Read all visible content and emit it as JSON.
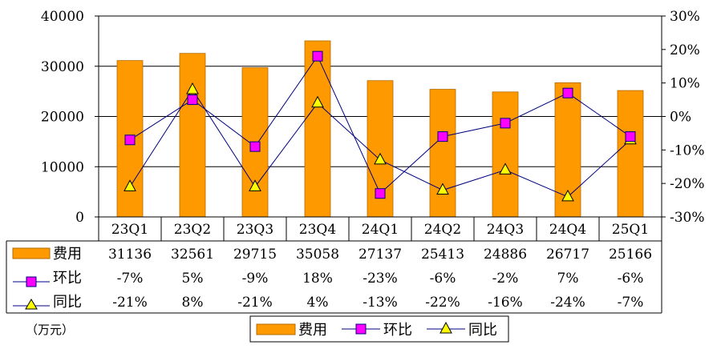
{
  "chart_data": {
    "type": "bar",
    "categories": [
      "23Q1",
      "23Q2",
      "23Q3",
      "23Q4",
      "24Q1",
      "24Q2",
      "24Q3",
      "24Q4",
      "25Q1"
    ],
    "series": [
      {
        "name": "费用",
        "type": "bar",
        "axis": "left",
        "values": [
          31136,
          32561,
          29715,
          35058,
          27137,
          25413,
          24886,
          26717,
          25166
        ],
        "labels": [
          "31136",
          "32561",
          "29715",
          "35058",
          "27137",
          "25413",
          "24886",
          "26717",
          "25166"
        ]
      },
      {
        "name": "环比",
        "type": "line",
        "marker": "square",
        "axis": "right",
        "values": [
          -7,
          5,
          -9,
          18,
          -23,
          -6,
          -2,
          7,
          -6
        ],
        "labels": [
          "-7%",
          "5%",
          "-9%",
          "18%",
          "-23%",
          "-6%",
          "-2%",
          "7%",
          "-6%"
        ]
      },
      {
        "name": "同比",
        "type": "line",
        "marker": "triangle",
        "axis": "right",
        "values": [
          -21,
          8,
          -21,
          4,
          -13,
          -22,
          -16,
          -24,
          -7
        ],
        "labels": [
          "-21%",
          "8%",
          "-21%",
          "4%",
          "-13%",
          "-22%",
          "-16%",
          "-24%",
          "-7%"
        ]
      }
    ],
    "y_left": {
      "range": [
        0,
        40000
      ],
      "ticks": [
        "0",
        "10000",
        "20000",
        "30000",
        "40000"
      ]
    },
    "y_right": {
      "range": [
        -30,
        30
      ],
      "ticks": [
        "-30%",
        "-20%",
        "-10%",
        "0%",
        "10%",
        "20%",
        "30%"
      ]
    },
    "unit_note": "（万元）",
    "legend_position": "bottom-center",
    "grid": "horizontal",
    "colors": {
      "bar": "#FF9900",
      "bar_edge": "#B36B00",
      "qoq_marker": "#FF00FF",
      "yoy_marker": "#FFFF00",
      "line": "#000080"
    }
  }
}
